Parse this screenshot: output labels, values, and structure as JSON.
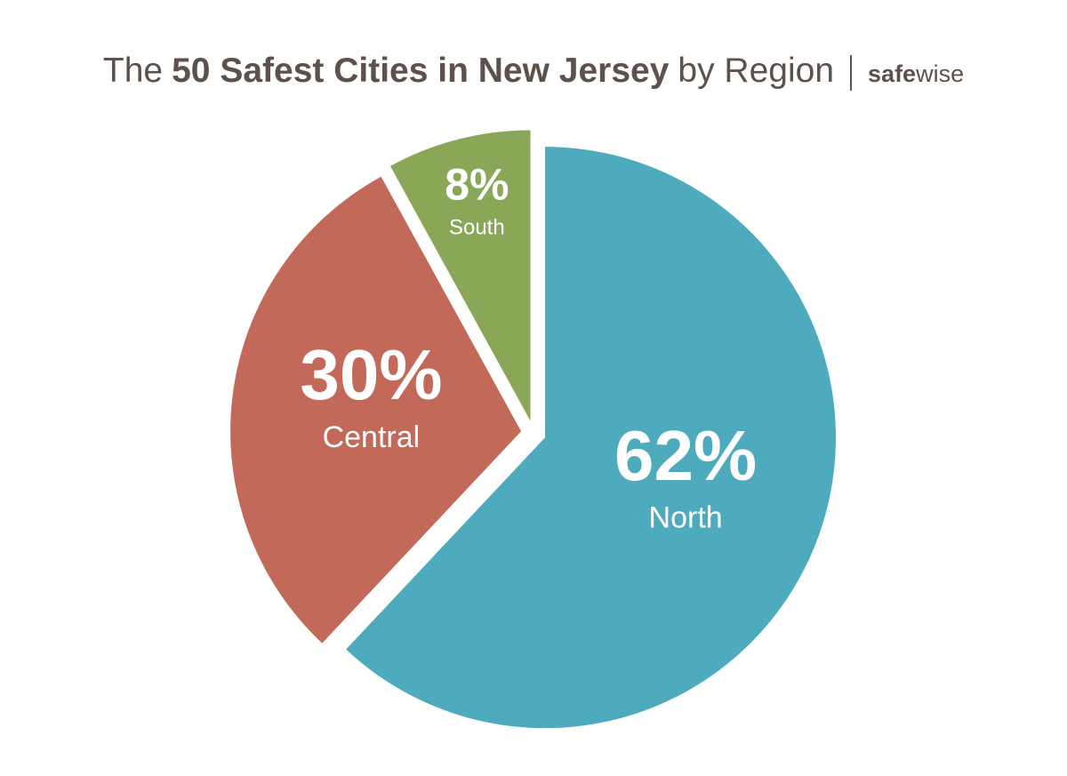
{
  "chart_data": {
    "type": "pie",
    "title_parts": [
      "The",
      "50 Safest Cities in New Jersey",
      "by Region"
    ],
    "brand_parts": [
      "safe",
      "wise"
    ],
    "categories": [
      "North",
      "Central",
      "South"
    ],
    "values": [
      62,
      30,
      8
    ],
    "value_labels": [
      "62%",
      "30%",
      "8%"
    ],
    "colors": [
      "#4eabbd",
      "#c2695a",
      "#8aa657"
    ]
  }
}
